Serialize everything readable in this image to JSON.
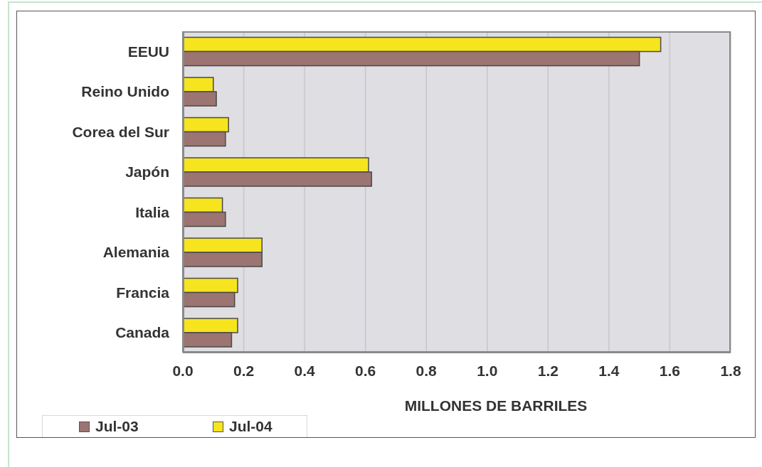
{
  "chart_data": {
    "type": "bar",
    "orientation": "horizontal",
    "categories": [
      "EEUU",
      "Reino Unido",
      "Corea del Sur",
      "Japón",
      "Italia",
      "Alemania",
      "Francia",
      "Canada"
    ],
    "series": [
      {
        "name": "Jul-03",
        "color": "#9c7472",
        "values": [
          1.5,
          0.11,
          0.14,
          0.62,
          0.14,
          0.26,
          0.17,
          0.16
        ]
      },
      {
        "name": "Jul-04",
        "color": "#f6e51e",
        "values": [
          1.57,
          0.1,
          0.15,
          0.61,
          0.13,
          0.26,
          0.18,
          0.18
        ]
      }
    ],
    "xlim": [
      0,
      1.8
    ],
    "xticks": [
      {
        "value": 0,
        "label": "0.0"
      },
      0.2,
      0.4,
      0.6,
      0.8,
      {
        "value": 1,
        "label": "1.0"
      },
      1.2,
      1.4,
      1.6,
      1.8
    ],
    "xlabel": "MILLONES DE BARRILES",
    "grid": "x",
    "legend": "bottom left"
  }
}
